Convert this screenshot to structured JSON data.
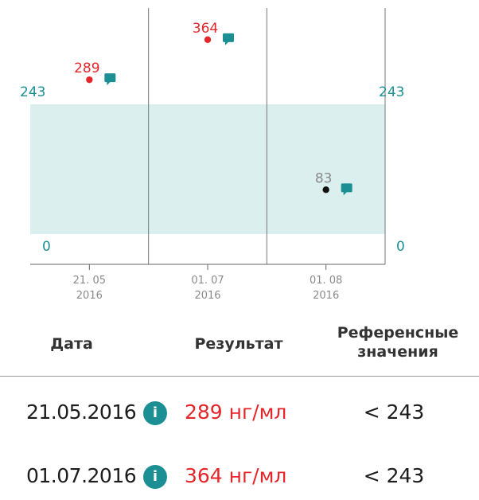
{
  "chart_data": {
    "type": "scatter",
    "y_reference_low": 0,
    "y_reference_high": 243,
    "y_axis_labels": {
      "left_low": "0",
      "left_high": "243",
      "right_low": "0",
      "right_high": "243"
    },
    "points": [
      {
        "tick_day_month": "21. 05",
        "tick_year": "2016",
        "value": 289,
        "label": "289",
        "status": "high"
      },
      {
        "tick_day_month": "01. 07",
        "tick_year": "2016",
        "value": 364,
        "label": "364",
        "status": "high"
      },
      {
        "tick_day_month": "01. 08",
        "tick_year": "2016",
        "value": 83,
        "label": "83",
        "status": "normal"
      }
    ]
  },
  "colors": {
    "high": "#e4262b",
    "normal": "#111111",
    "normal_label": "#8a8a8a",
    "teal": "#1b8f94",
    "band": "#dcefef"
  },
  "table": {
    "headers": {
      "date": "Дата",
      "result": "Результат",
      "reference": "Референсные значения"
    },
    "rows": [
      {
        "date": "21.05.2016",
        "info_icon": "i",
        "result": "289 нг/мл",
        "reference": "< 243"
      },
      {
        "date": "01.07.2016",
        "info_icon": "i",
        "result": "364 нг/мл",
        "reference": "< 243"
      }
    ]
  }
}
